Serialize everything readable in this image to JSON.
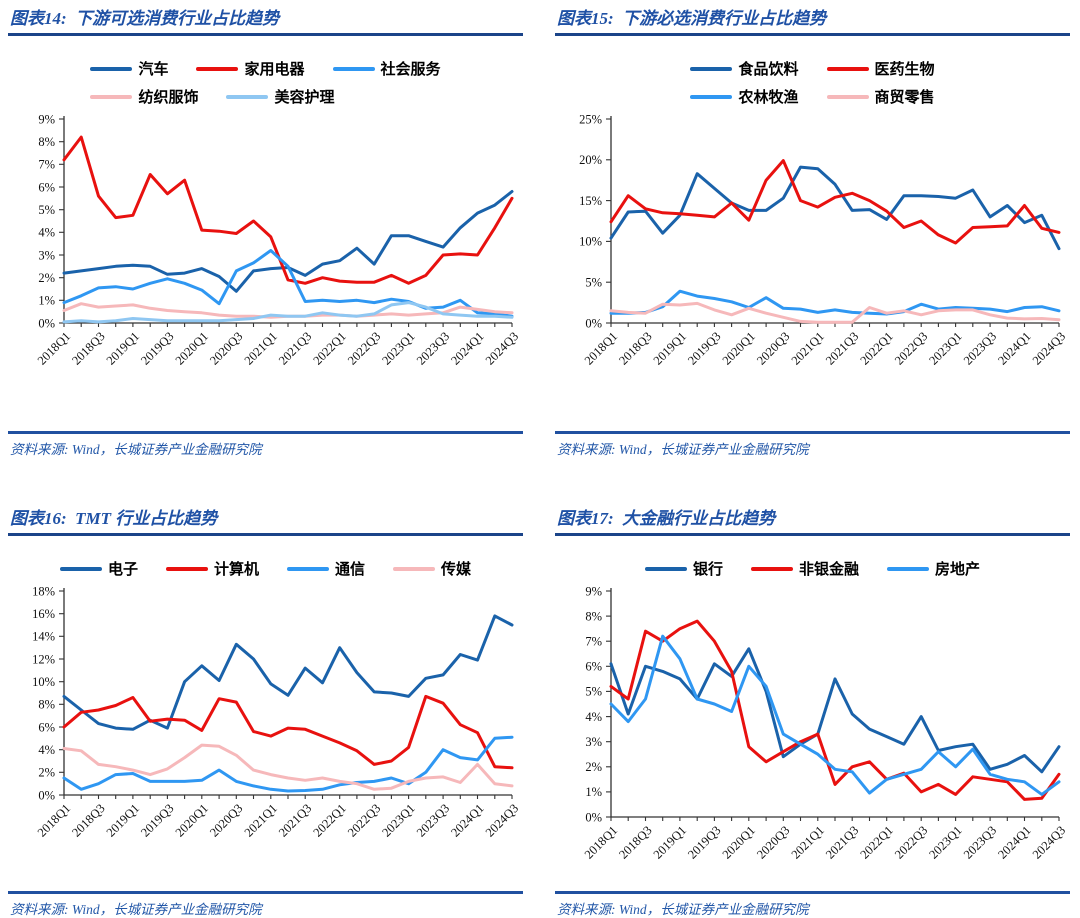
{
  "palette": {
    "title_blue": "#1f51a5",
    "rule_navy": "#1b4489",
    "source_blue": "#2257a8",
    "dark_blue_series": "#1a62aa",
    "red_series": "#e8110f",
    "bright_blue_series": "#2f97f2",
    "pink_series": "#f6b8ba",
    "light_blue_series": "#8fc7f2",
    "axis_color": "#333333"
  },
  "chart_data": [
    {
      "id": "fig14",
      "type": "line",
      "title": "图表14:  下游可选消费行业占比趋势",
      "source": "资料来源: Wind，长城证券产业金融研究院",
      "legend_position": "top-center-two-rows",
      "grid": false,
      "categories": [
        "2018Q1",
        "2018Q2",
        "2018Q3",
        "2018Q4",
        "2019Q1",
        "2019Q2",
        "2019Q3",
        "2019Q4",
        "2020Q1",
        "2020Q2",
        "2020Q3",
        "2020Q4",
        "2021Q1",
        "2021Q2",
        "2021Q3",
        "2021Q4",
        "2022Q1",
        "2022Q2",
        "2022Q3",
        "2022Q4",
        "2023Q1",
        "2023Q2",
        "2023Q3",
        "2023Q4",
        "2024Q1",
        "2024Q2",
        "2024Q3"
      ],
      "x_tick_labels": [
        "2018Q1",
        "2018Q3",
        "2019Q1",
        "2019Q3",
        "2020Q1",
        "2020Q3",
        "2021Q1",
        "2021Q3",
        "2022Q1",
        "2022Q3",
        "2023Q1",
        "2023Q3",
        "2024Q1",
        "2024Q3"
      ],
      "ylim": [
        0,
        9
      ],
      "ystep": 1,
      "legend_rows": [
        [
          0,
          1,
          2
        ],
        [
          3,
          4
        ]
      ],
      "series": [
        {
          "name": "汽车",
          "color": "#1a62aa",
          "values": [
            2.2,
            2.3,
            2.4,
            2.5,
            2.55,
            2.5,
            2.15,
            2.2,
            2.4,
            2.05,
            1.4,
            2.3,
            2.4,
            2.45,
            2.1,
            2.6,
            2.75,
            3.3,
            2.6,
            3.85,
            3.85,
            3.6,
            3.35,
            4.2,
            4.85,
            5.2,
            5.8
          ]
        },
        {
          "name": "家用电器",
          "color": "#e8110f",
          "values": [
            7.2,
            8.2,
            5.6,
            4.65,
            4.75,
            6.55,
            5.7,
            6.3,
            4.1,
            4.05,
            3.95,
            4.5,
            3.8,
            1.9,
            1.75,
            2.0,
            1.85,
            1.8,
            1.8,
            2.1,
            1.75,
            2.1,
            3.0,
            3.05,
            3.0,
            4.2,
            5.5
          ]
        },
        {
          "name": "社会服务",
          "color": "#2f97f2",
          "values": [
            0.9,
            1.2,
            1.55,
            1.6,
            1.5,
            1.75,
            1.95,
            1.75,
            1.45,
            0.85,
            2.3,
            2.65,
            3.2,
            2.5,
            0.95,
            1.0,
            0.95,
            1.0,
            0.9,
            1.05,
            0.95,
            0.65,
            0.7,
            1.0,
            0.45,
            0.4,
            0.3
          ]
        },
        {
          "name": "纺织服饰",
          "color": "#f6b8ba",
          "values": [
            0.55,
            0.85,
            0.7,
            0.75,
            0.8,
            0.65,
            0.55,
            0.5,
            0.45,
            0.35,
            0.3,
            0.3,
            0.25,
            0.3,
            0.3,
            0.35,
            0.35,
            0.3,
            0.35,
            0.4,
            0.35,
            0.4,
            0.45,
            0.7,
            0.6,
            0.5,
            0.45
          ]
        },
        {
          "name": "美容护理",
          "color": "#8fc7f2",
          "values": [
            0.05,
            0.1,
            0.05,
            0.1,
            0.2,
            0.15,
            0.1,
            0.1,
            0.1,
            0.1,
            0.15,
            0.2,
            0.35,
            0.3,
            0.3,
            0.45,
            0.35,
            0.3,
            0.4,
            0.8,
            0.9,
            0.7,
            0.4,
            0.35,
            0.3,
            0.3,
            0.25
          ]
        }
      ]
    },
    {
      "id": "fig15",
      "type": "line",
      "title": "图表15:  下游必选消费行业占比趋势",
      "source": "资料来源: Wind，长城证券产业金融研究院",
      "legend_position": "top-center-two-rows",
      "grid": false,
      "categories": [
        "2018Q1",
        "2018Q2",
        "2018Q3",
        "2018Q4",
        "2019Q1",
        "2019Q2",
        "2019Q3",
        "2019Q4",
        "2020Q1",
        "2020Q2",
        "2020Q3",
        "2020Q4",
        "2021Q1",
        "2021Q2",
        "2021Q3",
        "2021Q4",
        "2022Q1",
        "2022Q2",
        "2022Q3",
        "2022Q4",
        "2023Q1",
        "2023Q2",
        "2023Q3",
        "2023Q4",
        "2024Q1",
        "2024Q2",
        "2024Q3"
      ],
      "x_tick_labels": [
        "2018Q1",
        "2018Q3",
        "2019Q1",
        "2019Q3",
        "2020Q1",
        "2020Q3",
        "2021Q1",
        "2021Q3",
        "2022Q1",
        "2022Q3",
        "2023Q1",
        "2023Q3",
        "2024Q1",
        "2024Q3"
      ],
      "ylim": [
        0,
        25
      ],
      "ystep": 5,
      "legend_rows": [
        [
          0,
          1
        ],
        [
          2,
          3
        ]
      ],
      "series": [
        {
          "name": "食品饮料",
          "color": "#1a62aa",
          "values": [
            10.4,
            13.6,
            13.7,
            11.0,
            13.2,
            18.3,
            16.5,
            14.7,
            13.8,
            13.8,
            15.3,
            19.1,
            18.9,
            17.0,
            13.8,
            13.9,
            12.7,
            15.6,
            15.6,
            15.5,
            15.3,
            16.3,
            13.0,
            14.4,
            12.3,
            13.2,
            9.1
          ]
        },
        {
          "name": "医药生物",
          "color": "#e8110f",
          "values": [
            12.4,
            15.6,
            14.0,
            13.5,
            13.4,
            13.2,
            13.0,
            14.7,
            12.6,
            17.5,
            19.9,
            15.0,
            14.2,
            15.4,
            15.9,
            15.0,
            13.7,
            11.7,
            12.5,
            10.8,
            9.8,
            11.7,
            11.8,
            11.9,
            14.4,
            11.6,
            11.1
          ]
        },
        {
          "name": "农林牧渔",
          "color": "#2f97f2",
          "values": [
            1.2,
            1.2,
            1.3,
            2.0,
            3.9,
            3.3,
            3.0,
            2.6,
            1.9,
            3.1,
            1.8,
            1.7,
            1.3,
            1.6,
            1.3,
            1.2,
            1.1,
            1.4,
            2.3,
            1.7,
            1.9,
            1.8,
            1.7,
            1.4,
            1.9,
            2.0,
            1.5
          ]
        },
        {
          "name": "商贸零售",
          "color": "#f6b8ba",
          "values": [
            1.5,
            1.3,
            1.2,
            2.3,
            2.2,
            2.4,
            1.6,
            1.0,
            1.8,
            1.2,
            0.7,
            0.2,
            0.1,
            0.1,
            0.1,
            1.9,
            1.2,
            1.5,
            1.0,
            1.5,
            1.6,
            1.6,
            1.0,
            0.6,
            0.5,
            0.55,
            0.4
          ]
        }
      ]
    },
    {
      "id": "fig16",
      "type": "line",
      "title": "图表16:  TMT 行业占比趋势",
      "source": "资料来源: Wind，长城证券产业金融研究院",
      "legend_position": "top-center-one-row",
      "grid": false,
      "categories": [
        "2018Q1",
        "2018Q2",
        "2018Q3",
        "2018Q4",
        "2019Q1",
        "2019Q2",
        "2019Q3",
        "2019Q4",
        "2020Q1",
        "2020Q2",
        "2020Q3",
        "2020Q4",
        "2021Q1",
        "2021Q2",
        "2021Q3",
        "2021Q4",
        "2022Q1",
        "2022Q2",
        "2022Q3",
        "2022Q4",
        "2023Q1",
        "2023Q2",
        "2023Q3",
        "2023Q4",
        "2024Q1",
        "2024Q2",
        "2024Q3"
      ],
      "x_tick_labels": [
        "2018Q1",
        "2018Q3",
        "2019Q1",
        "2019Q3",
        "2020Q1",
        "2020Q3",
        "2021Q1",
        "2021Q3",
        "2022Q1",
        "2022Q3",
        "2023Q1",
        "2023Q3",
        "2024Q1",
        "2024Q3"
      ],
      "ylim": [
        0,
        18
      ],
      "ystep": 2,
      "legend_rows": [
        [
          0,
          1,
          2,
          3
        ]
      ],
      "series": [
        {
          "name": "电子",
          "color": "#1a62aa",
          "values": [
            8.7,
            7.5,
            6.3,
            5.9,
            5.8,
            6.6,
            5.9,
            10.0,
            11.4,
            10.1,
            13.3,
            12.0,
            9.8,
            8.8,
            11.2,
            9.9,
            13.0,
            10.8,
            9.1,
            9.0,
            8.7,
            10.3,
            10.6,
            12.4,
            11.9,
            15.8,
            15.0
          ]
        },
        {
          "name": "计算机",
          "color": "#e8110f",
          "values": [
            6.0,
            7.3,
            7.5,
            7.9,
            8.6,
            6.5,
            6.7,
            6.6,
            5.7,
            8.5,
            8.2,
            5.6,
            5.2,
            5.9,
            5.8,
            5.2,
            4.6,
            3.9,
            2.7,
            3.0,
            4.2,
            8.7,
            8.1,
            6.2,
            5.5,
            2.5,
            2.4
          ]
        },
        {
          "name": "通信",
          "color": "#2f97f2",
          "values": [
            1.5,
            0.5,
            1.0,
            1.8,
            1.9,
            1.2,
            1.2,
            1.2,
            1.3,
            2.2,
            1.2,
            0.8,
            0.5,
            0.35,
            0.4,
            0.5,
            0.9,
            1.1,
            1.2,
            1.5,
            1.0,
            2.0,
            4.0,
            3.3,
            3.1,
            5.0,
            5.1
          ]
        },
        {
          "name": "传媒",
          "color": "#f6b8ba",
          "values": [
            4.1,
            3.9,
            2.7,
            2.5,
            2.2,
            1.8,
            2.3,
            3.3,
            4.4,
            4.3,
            3.5,
            2.2,
            1.8,
            1.5,
            1.3,
            1.5,
            1.2,
            1.0,
            0.5,
            0.6,
            1.2,
            1.5,
            1.6,
            1.1,
            2.7,
            1.0,
            0.8
          ]
        }
      ]
    },
    {
      "id": "fig17",
      "type": "line",
      "title": "图表17:  大金融行业占比趋势",
      "source": "资料来源: Wind，长城证券产业金融研究院",
      "legend_position": "top-center-one-row",
      "grid": false,
      "categories": [
        "2018Q1",
        "2018Q2",
        "2018Q3",
        "2018Q4",
        "2019Q1",
        "2019Q2",
        "2019Q3",
        "2019Q4",
        "2020Q1",
        "2020Q2",
        "2020Q3",
        "2020Q4",
        "2021Q1",
        "2021Q2",
        "2021Q3",
        "2021Q4",
        "2022Q1",
        "2022Q2",
        "2022Q3",
        "2022Q4",
        "2023Q1",
        "2023Q2",
        "2023Q3",
        "2023Q4",
        "2024Q1",
        "2024Q2",
        "2024Q3"
      ],
      "x_tick_labels": [
        "2018Q1",
        "2018Q3",
        "2019Q1",
        "2019Q3",
        "2020Q1",
        "2020Q3",
        "2021Q1",
        "2021Q3",
        "2022Q1",
        "2022Q3",
        "2023Q1",
        "2023Q3",
        "2024Q1",
        "2024Q3"
      ],
      "ylim": [
        0,
        9
      ],
      "ystep": 1,
      "legend_rows": [
        [
          0,
          1,
          2
        ]
      ],
      "series": [
        {
          "name": "银行",
          "color": "#1a62aa",
          "values": [
            6.1,
            4.1,
            6.0,
            5.8,
            5.5,
            4.7,
            6.1,
            5.6,
            6.7,
            5.0,
            2.4,
            2.9,
            3.3,
            5.5,
            4.1,
            3.5,
            3.2,
            2.9,
            4.0,
            2.65,
            2.8,
            2.9,
            1.9,
            2.1,
            2.45,
            1.8,
            2.8
          ]
        },
        {
          "name": "非银金融",
          "color": "#e8110f",
          "values": [
            5.2,
            4.7,
            7.4,
            7.0,
            7.5,
            7.8,
            7.0,
            5.8,
            2.8,
            2.2,
            2.6,
            3.0,
            3.3,
            1.3,
            2.0,
            2.2,
            1.5,
            1.75,
            1.0,
            1.3,
            0.9,
            1.6,
            1.5,
            1.4,
            0.7,
            0.75,
            1.7
          ]
        },
        {
          "name": "房地产",
          "color": "#2f97f2",
          "values": [
            4.5,
            3.8,
            4.7,
            7.2,
            6.3,
            4.7,
            4.5,
            4.2,
            6.0,
            5.2,
            3.3,
            2.9,
            2.5,
            1.9,
            1.8,
            0.95,
            1.5,
            1.7,
            1.9,
            2.6,
            2.0,
            2.7,
            1.7,
            1.5,
            1.4,
            0.9,
            1.4
          ]
        }
      ]
    }
  ]
}
